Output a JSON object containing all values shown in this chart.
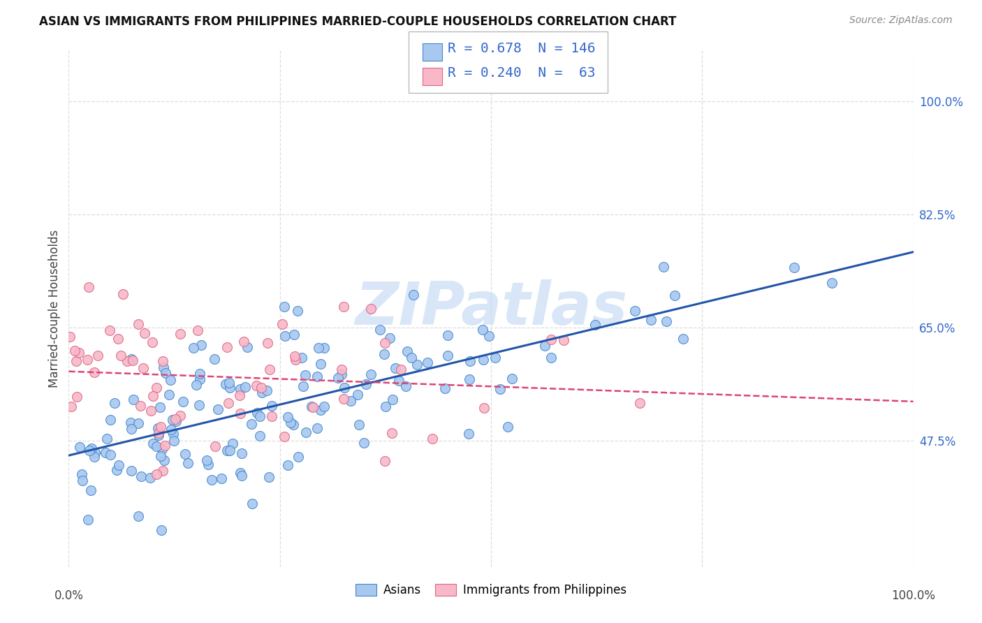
{
  "title": "ASIAN VS IMMIGRANTS FROM PHILIPPINES MARRIED-COUPLE HOUSEHOLDS CORRELATION CHART",
  "source": "Source: ZipAtlas.com",
  "ylabel": "Married-couple Households",
  "ytick_labels": [
    "47.5%",
    "65.0%",
    "82.5%",
    "100.0%"
  ],
  "ytick_values": [
    47.5,
    65.0,
    82.5,
    100.0
  ],
  "xlim": [
    0.0,
    100.0
  ],
  "ylim": [
    28.0,
    108.0
  ],
  "ymin_display": 28.0,
  "ymax_display": 108.0,
  "legend_blue_R": "0.678",
  "legend_blue_N": "146",
  "legend_pink_R": "0.240",
  "legend_pink_N": " 63",
  "legend_label_blue": "Asians",
  "legend_label_pink": "Immigrants from Philippines",
  "blue_color": "#A8C8F0",
  "pink_color": "#F8B8C8",
  "blue_edge_color": "#4488CC",
  "pink_edge_color": "#DD6688",
  "blue_line_color": "#2255AA",
  "pink_line_color": "#DD4477",
  "legend_text_color": "#3366CC",
  "watermark": "ZIPatlas",
  "watermark_color": "#C8DCF4",
  "blue_scatter_seed": 42,
  "pink_scatter_seed": 7,
  "blue_N": 146,
  "pink_N": 63,
  "blue_intercept": 47.0,
  "blue_slope": 0.26,
  "blue_noise": 6.0,
  "pink_intercept": 55.5,
  "pink_slope": 0.115,
  "pink_noise": 7.5,
  "grid_color": "#DDDDDD",
  "title_fontsize": 12,
  "source_fontsize": 10,
  "tick_fontsize": 12,
  "legend_fontsize": 14
}
